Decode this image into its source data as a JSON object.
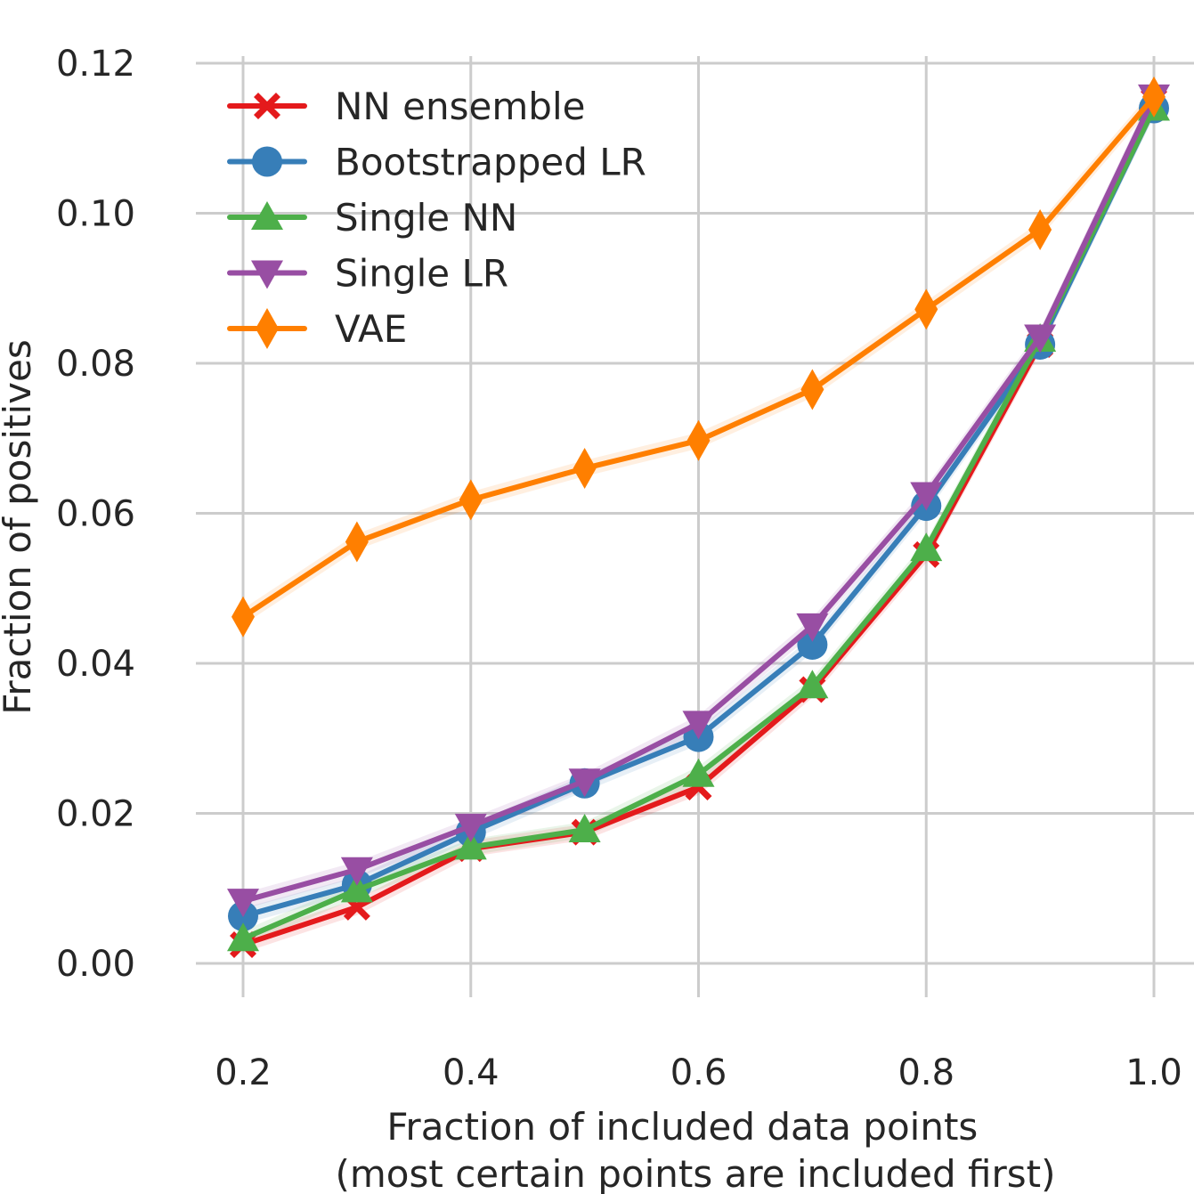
{
  "chart_data": {
    "type": "line",
    "xlabel": [
      "Fraction of included data points",
      "(most certain points are included first)"
    ],
    "ylabel": "Fraction of positives",
    "xlim": [
      0.16,
      1.0
    ],
    "ylim": [
      -0.0045,
      0.1235
    ],
    "x_ticks": [
      "0.2",
      "0.4",
      "0.6",
      "0.8",
      "1.0"
    ],
    "y_ticks": [
      "0.00",
      "0.02",
      "0.04",
      "0.06",
      "0.08",
      "0.10",
      "0.12"
    ],
    "grid": true,
    "legend_position": "upper-left",
    "x": [
      0.2,
      0.3,
      0.4,
      0.5,
      0.6,
      0.7,
      0.8,
      0.9,
      1.0
    ],
    "series": [
      {
        "name": "NN ensemble",
        "marker": "x-cross",
        "color": "#e41a1c",
        "values": [
          0.0025,
          0.0075,
          0.0153,
          0.0175,
          0.0235,
          0.0365,
          0.0545,
          0.0825,
          0.115
        ]
      },
      {
        "name": "Bootstrapped LR",
        "marker": "circle",
        "color": "#377eb8",
        "values": [
          0.0063,
          0.0105,
          0.0175,
          0.024,
          0.0302,
          0.0425,
          0.061,
          0.0825,
          0.114
        ]
      },
      {
        "name": "Single NN",
        "marker": "triangle-up",
        "color": "#4daf4a",
        "values": [
          0.0033,
          0.0098,
          0.0155,
          0.0178,
          0.0252,
          0.037,
          0.0553,
          0.0832,
          0.114
        ]
      },
      {
        "name": "Single LR",
        "marker": "triangle-down",
        "color": "#984ea3",
        "values": [
          0.0083,
          0.0125,
          0.0183,
          0.0243,
          0.032,
          0.045,
          0.0625,
          0.0835,
          0.1155
        ]
      },
      {
        "name": "VAE",
        "marker": "diamond",
        "color": "#ff7f00",
        "values": [
          0.0462,
          0.0562,
          0.0618,
          0.066,
          0.0697,
          0.0765,
          0.0872,
          0.0978,
          0.1155
        ]
      }
    ]
  }
}
